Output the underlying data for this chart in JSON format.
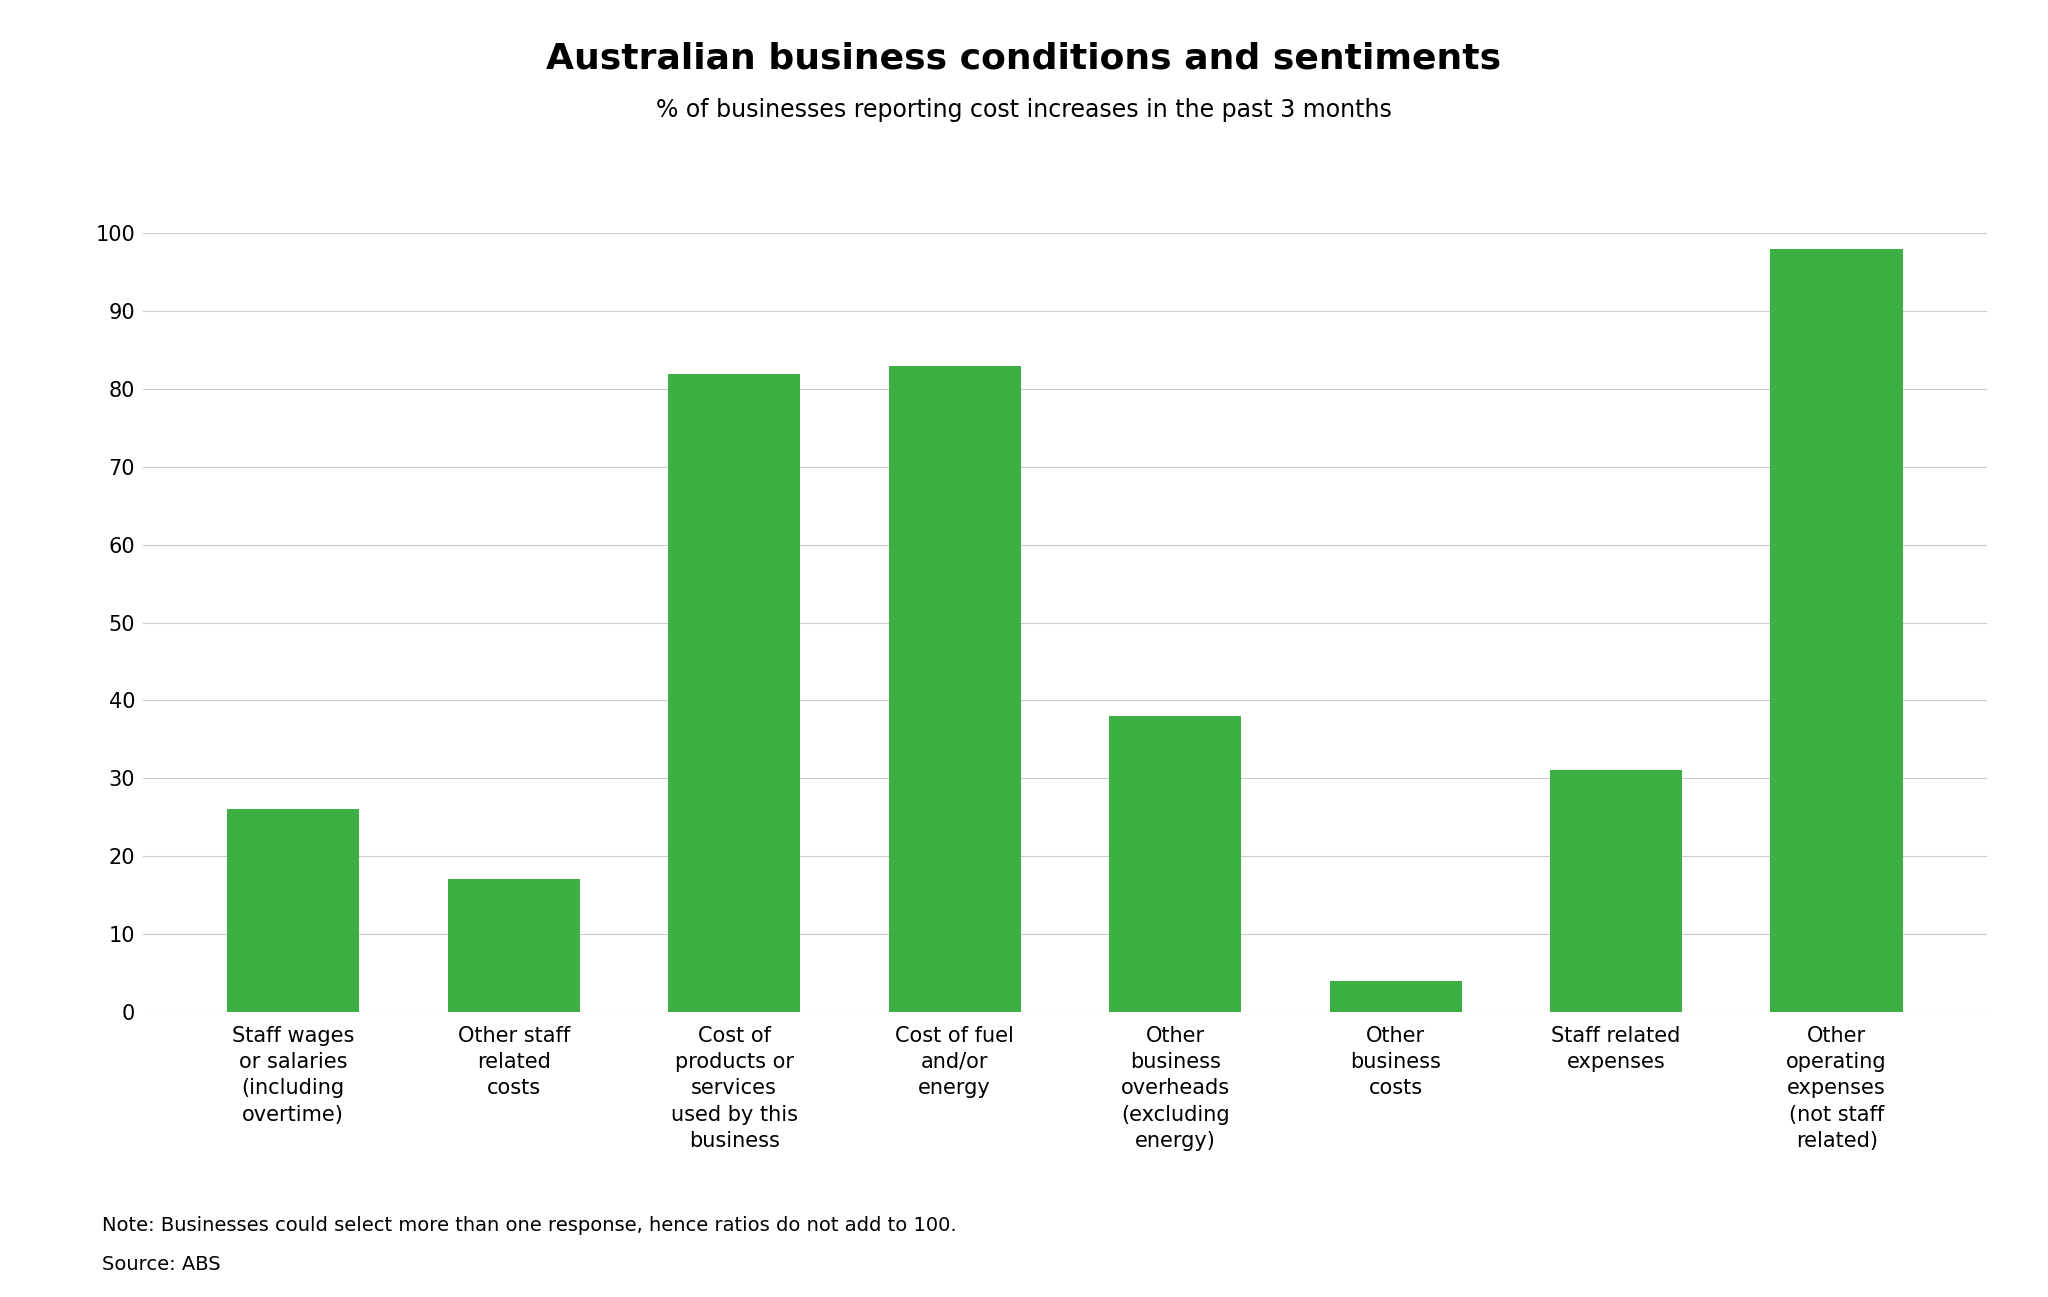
{
  "title": "Australian business conditions and sentiments",
  "subtitle": "% of businesses reporting cost increases in the past 3 months",
  "categories": [
    "Staff wages\nor salaries\n(including\novertime)",
    "Other staff\nrelated\ncosts",
    "Cost of\nproducts or\nservices\nused by this\nbusiness",
    "Cost of fuel\nand/or\nenergy",
    "Other\nbusiness\noverheads\n(excluding\nenergy)",
    "Other\nbusiness\ncosts",
    "Staff related\nexpenses",
    "Other\noperating\nexpenses\n(not staff\nrelated)"
  ],
  "values": [
    26,
    17,
    82,
    83,
    38,
    4,
    31,
    98
  ],
  "bar_color": "#3cb043",
  "ylim": [
    0,
    100
  ],
  "yticks": [
    0,
    10,
    20,
    30,
    40,
    50,
    60,
    70,
    80,
    90,
    100
  ],
  "note_line1": "Note: Businesses could select more than one response, hence ratios do not add to 100.",
  "note_line2": "Source: ABS",
  "background_color": "#ffffff",
  "grid_color": "#cccccc",
  "title_fontsize": 26,
  "subtitle_fontsize": 17,
  "tick_label_fontsize": 15,
  "note_fontsize": 14
}
